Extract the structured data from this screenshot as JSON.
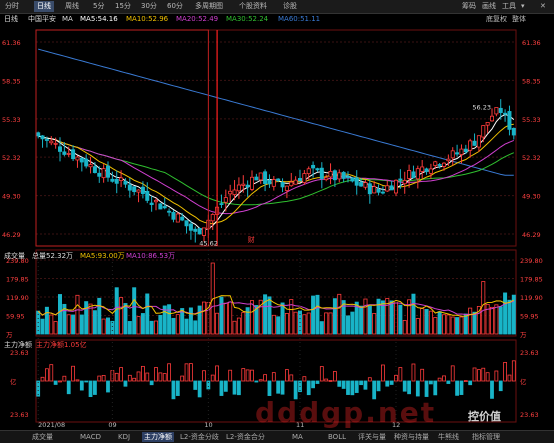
{
  "tabs": {
    "items": [
      "分时",
      "日线",
      "周线",
      "5分",
      "15分",
      "30分",
      "60分",
      "多周期图",
      "个股资料",
      "诊股"
    ],
    "active": 1,
    "right": [
      "筹码",
      "画线",
      "工具"
    ]
  },
  "info": {
    "period": "日线",
    "name": "中国平安",
    "ma_label": "MA",
    "ma5": "MA5:54.16",
    "ma10": "MA10:52.96",
    "ma20": "MA20:52.49",
    "ma30": "MA30:52.24",
    "ma60": "MA60:51.11",
    "right_note": "底复权",
    "right_note2": "整体"
  },
  "colors": {
    "up": "#ff3b3b",
    "down": "#19b4c8",
    "ma5": "#ffffff",
    "ma10": "#f0c000",
    "ma20": "#d040d0",
    "ma30": "#30c030",
    "ma60": "#3a7bd5"
  },
  "price_axis": {
    "ticks": [
      "61.36",
      "58.35",
      "55.33",
      "52.32",
      "49.30",
      "46.29"
    ],
    "high_label": "56.23",
    "low_label": "45.62"
  },
  "annotations": {
    "marker_a": "财"
  },
  "volume": {
    "title": "成交量",
    "total": "总量52.32万",
    "ma5": "MA5:93.00万",
    "ma10": "MA10:86.53万",
    "ticks": [
      "239.80",
      "179.85",
      "119.90",
      "59.95",
      "万"
    ]
  },
  "flow": {
    "title": "主力净额",
    "value": "主力净额1.05亿",
    "ticks": [
      "23.63",
      "亿",
      "23.63"
    ]
  },
  "dates": [
    "2021/08",
    "09",
    "10",
    "11",
    "12"
  ],
  "bottom_tabs": {
    "items": [
      "成交量",
      "MACD",
      "KDJ",
      "主力净额",
      "L2-资金分歧",
      "L2-资金合分",
      "MA",
      "BOLL",
      "评关与量",
      "种资与持量",
      "牛熊线",
      "指标管理"
    ],
    "active": 3
  },
  "watermark": {
    "text": "控价值",
    "url_text": "dddgp.net"
  }
}
